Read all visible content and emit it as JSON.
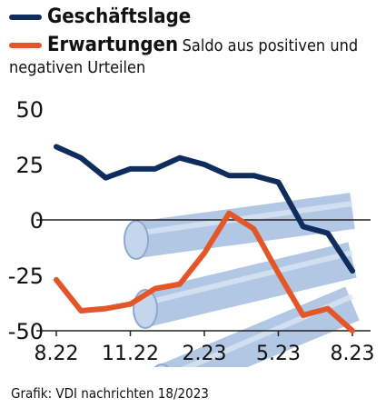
{
  "legend": {
    "series1": "Geschäftslage",
    "series2": "Erwartungen",
    "subtitle_a": "Saldo aus positiven und",
    "subtitle_b": "negativen Urteilen"
  },
  "source": "Grafik: VDI nachrichten 18/2023",
  "colors": {
    "geschaeftslage": "#0f2d5c",
    "erwartungen": "#e3562a",
    "pipes": "#a9c2e2"
  },
  "chart_data": {
    "type": "line",
    "x": [
      "8.22",
      "9.22",
      "10.22",
      "11.22",
      "12.22",
      "1.23",
      "2.23",
      "3.23",
      "4.23",
      "5.23",
      "6.23",
      "7.23",
      "8.23"
    ],
    "x_tick_labels": [
      "8.22",
      "11.22",
      "2.23",
      "5.23",
      "8.23"
    ],
    "y_tick_labels": [
      "50",
      "25",
      "0",
      "-25",
      "-50"
    ],
    "ylim": [
      -50,
      50
    ],
    "series": [
      {
        "name": "Geschäftslage",
        "values": [
          33,
          28,
          19,
          23,
          23,
          28,
          25,
          20,
          20,
          17,
          -3,
          -6,
          -23
        ]
      },
      {
        "name": "Erwartungen",
        "values": [
          -27,
          -41,
          -40,
          -38,
          -31,
          -29,
          -15,
          3,
          -4,
          -24,
          -43,
          -40,
          -50
        ]
      }
    ]
  }
}
